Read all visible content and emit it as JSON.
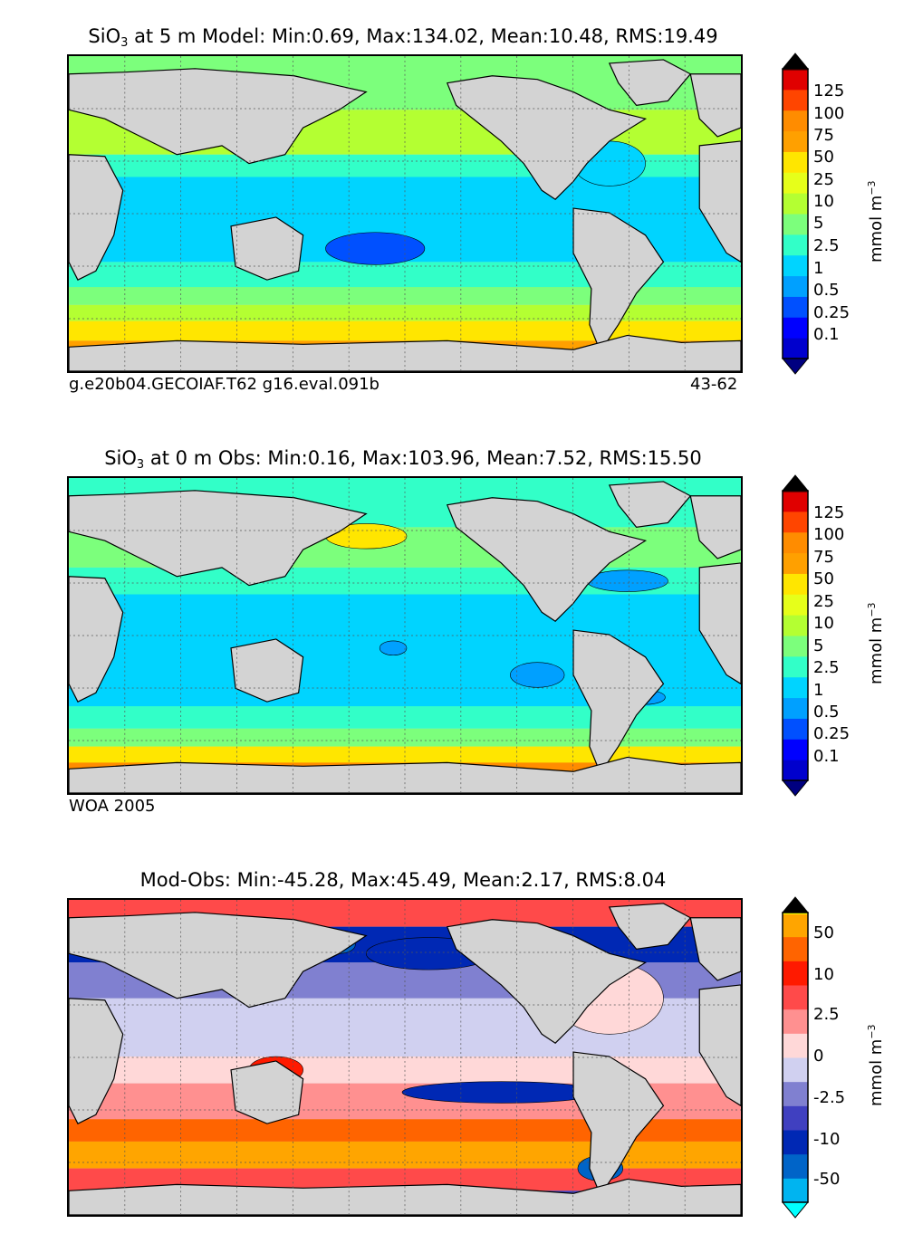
{
  "panels": [
    {
      "id": "model",
      "title_prefix": "SiO",
      "title_sub": "3",
      "title_suffix": " at 5 m Model: Min:0.69, Max:134.02, Mean:10.48, RMS:19.49",
      "caption_left": "g.e20b04.GECOIAF.T62 g16.eval.091b",
      "caption_right": "43-62",
      "colorbar": {
        "colors": [
          "#000080",
          "#0000cd",
          "#0000ff",
          "#0050ff",
          "#00a0ff",
          "#00d4ff",
          "#32ffc8",
          "#7cff7c",
          "#b4ff32",
          "#e6ff1a",
          "#ffe600",
          "#ffa000",
          "#ff8c00",
          "#ff4500",
          "#e00000",
          "#800000"
        ],
        "labels": [
          "125",
          "100",
          "75",
          "50",
          "25",
          "10",
          "5",
          "2.5",
          "1",
          "0.5",
          "0.25",
          "0.1"
        ],
        "unit": "mmol m",
        "unit_sup": "−3"
      }
    },
    {
      "id": "obs",
      "title_prefix": "SiO",
      "title_sub": "3",
      "title_suffix": " at 0 m Obs: Min:0.16, Max:103.96, Mean:7.52, RMS:15.50",
      "caption_left": "WOA 2005",
      "caption_right": "",
      "colorbar": {
        "colors": [
          "#000080",
          "#0000cd",
          "#0000ff",
          "#0050ff",
          "#00a0ff",
          "#00d4ff",
          "#32ffc8",
          "#7cff7c",
          "#b4ff32",
          "#e6ff1a",
          "#ffe600",
          "#ffa000",
          "#ff8c00",
          "#ff4500",
          "#e00000",
          "#800000"
        ],
        "labels": [
          "125",
          "100",
          "75",
          "50",
          "25",
          "10",
          "5",
          "2.5",
          "1",
          "0.5",
          "0.25",
          "0.1"
        ],
        "unit": "mmol m",
        "unit_sup": "−3"
      }
    },
    {
      "id": "diff",
      "title_prefix": "Mod-Obs: Min:-45.28, Max:45.49, Mean:2.17, RMS:8.04",
      "title_sub": "",
      "title_suffix": "",
      "caption_left": "",
      "caption_right": "",
      "colorbar": {
        "colors": [
          "#00ffff",
          "#00b4f0",
          "#0064c8",
          "#0028b4",
          "#4040c0",
          "#8080d0",
          "#d0d0f0",
          "#ffd8d8",
          "#ff9090",
          "#ff4a4a",
          "#ff1a00",
          "#ff6400",
          "#ffa500",
          "#ffff00"
        ],
        "labels": [
          "50",
          "10",
          "2.5",
          "0",
          "-2.5",
          "-10",
          "-50"
        ],
        "unit": "mmol m",
        "unit_sup": "−3"
      }
    }
  ]
}
